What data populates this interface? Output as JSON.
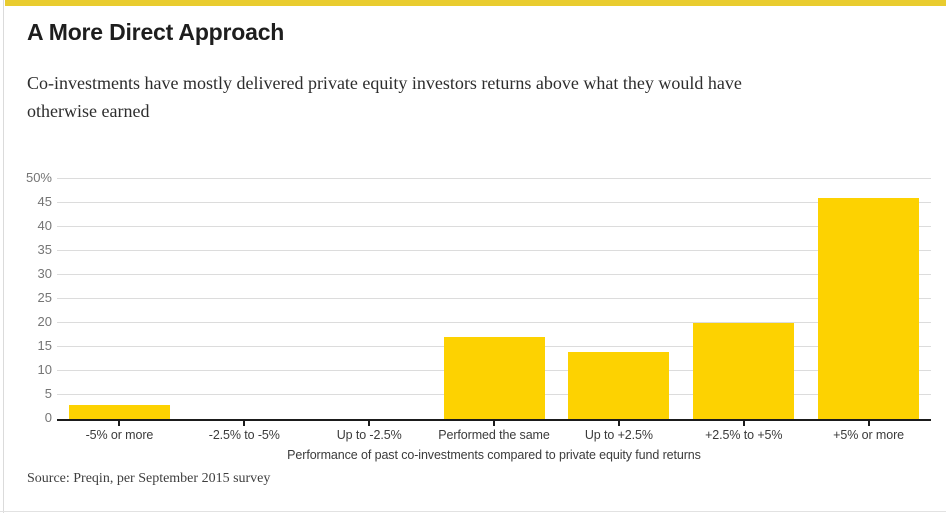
{
  "brand": {
    "accent_stripe_color": "#E9CC2F",
    "bar_color": "#FDD201"
  },
  "header": {
    "title": "A More Direct Approach",
    "subtitle_lines": [
      "Co-investments have mostly delivered private equity investors returns above what they would have",
      "otherwise earned"
    ]
  },
  "chart_data": {
    "type": "bar",
    "title": "A More Direct Approach",
    "categories": [
      "-5% or more",
      "-2.5% to -5%",
      "Up to -2.5%",
      "Performed the same",
      "Up to +2.5%",
      "+2.5% to +5%",
      "+5% or more"
    ],
    "values": [
      3,
      0,
      0,
      17,
      14,
      20,
      46
    ],
    "xlabel": "Performance of past co-investments compared to private equity fund returns",
    "ylabel": "",
    "ylim": [
      0,
      50
    ],
    "ytick_step": 5,
    "ytick_labels": [
      "0",
      "5",
      "10",
      "15",
      "20",
      "25",
      "30",
      "35",
      "40",
      "45",
      "50%"
    ],
    "grid": true,
    "legend": "none",
    "bar_color": "#FDD201"
  },
  "footer": {
    "source": "Source: Preqin, per September 2015 survey"
  }
}
